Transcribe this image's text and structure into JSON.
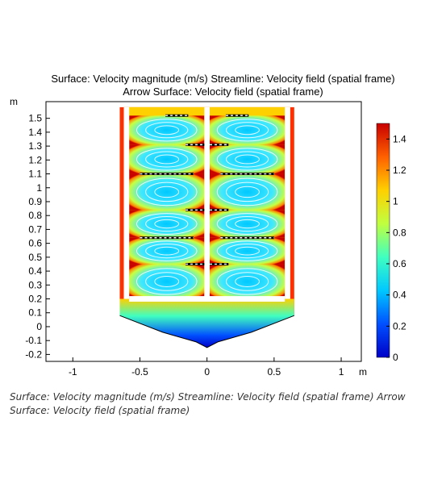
{
  "chart_data": {
    "type": "heatmap",
    "title": "Surface: Velocity magnitude (m/s)  Streamline: Velocity field (spatial frame)",
    "subtitle": "Arrow Surface: Velocity field (spatial frame)",
    "xlabel": "m",
    "ylabel": "m",
    "xlim": [
      -1.2,
      1.15
    ],
    "ylim": [
      -0.25,
      1.62
    ],
    "x_ticks": [
      "-1",
      "-0.5",
      "0",
      "0.5",
      "1"
    ],
    "x_tick_values": [
      -1,
      -0.5,
      0,
      0.5,
      1
    ],
    "y_ticks": [
      "-0.2",
      "-0.1",
      "0",
      "0.1",
      "0.2",
      "0.3",
      "0.4",
      "0.5",
      "0.6",
      "0.7",
      "0.8",
      "0.9",
      "1",
      "1.1",
      "1.2",
      "1.3",
      "1.4",
      "1.5"
    ],
    "y_tick_values": [
      -0.2,
      -0.1,
      0,
      0.1,
      0.2,
      0.3,
      0.4,
      0.5,
      0.6,
      0.7,
      0.8,
      0.9,
      1,
      1.1,
      1.2,
      1.3,
      1.4,
      1.5
    ],
    "colorbar": {
      "min": 0,
      "max": 1.5,
      "ticks": [
        "0",
        "0.2",
        "0.4",
        "0.6",
        "0.8",
        "1",
        "1.2",
        "1.4"
      ],
      "tick_values": [
        0,
        0.2,
        0.4,
        0.6,
        0.8,
        1.0,
        1.2,
        1.4
      ],
      "colormap": [
        "#0000c8",
        "#0050ff",
        "#00c8ff",
        "#40ffc0",
        "#c0ff40",
        "#ffd000",
        "#ff6000",
        "#c80000"
      ]
    },
    "grid": false,
    "vessel_wall_outline": [
      [
        -0.65,
        1.58
      ],
      [
        -0.65,
        0.08
      ],
      [
        -0.55,
        -0.02
      ],
      [
        0.55,
        -0.02
      ],
      [
        0.65,
        0.08
      ],
      [
        0.65,
        1.58
      ]
    ],
    "vessel_bottom": [
      [
        -0.65,
        0.08
      ],
      [
        -0.33,
        -0.04
      ],
      [
        -0.08,
        -0.11
      ],
      [
        0,
        -0.15
      ],
      [
        0.08,
        -0.11
      ],
      [
        0.33,
        -0.04
      ],
      [
        0.65,
        0.08
      ]
    ],
    "baffles": [
      {
        "x": [
          -0.31,
          -0.14
        ],
        "y": 1.52
      },
      {
        "x": [
          0.14,
          0.31
        ],
        "y": 1.52
      },
      {
        "x": [
          -0.16,
          -0.02
        ],
        "y": 1.31
      },
      {
        "x": [
          0.02,
          0.16
        ],
        "y": 1.31
      },
      {
        "x": [
          -0.5,
          -0.1
        ],
        "y": 1.1
      },
      {
        "x": [
          0.1,
          0.5
        ],
        "y": 1.1
      },
      {
        "x": [
          -0.16,
          -0.02
        ],
        "y": 0.84
      },
      {
        "x": [
          0.02,
          0.16
        ],
        "y": 0.84
      },
      {
        "x": [
          -0.5,
          -0.1
        ],
        "y": 0.64
      },
      {
        "x": [
          0.1,
          0.5
        ],
        "y": 0.64
      },
      {
        "x": [
          -0.16,
          -0.02
        ],
        "y": 0.45
      },
      {
        "x": [
          0.02,
          0.16
        ],
        "y": 0.45
      }
    ]
  },
  "caption": "Surface: Velocity magnitude (m/s) Streamline: Velocity field (spatial frame) Arrow Surface: Velocity field (spatial frame)"
}
